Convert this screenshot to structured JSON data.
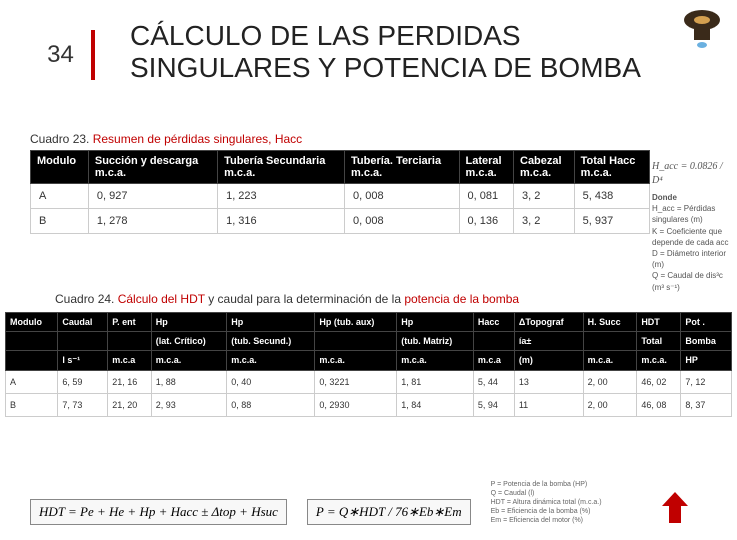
{
  "slide_number": "34",
  "title": "CÁLCULO DE LAS PERDIDAS SINGULARES Y POTENCIA DE BOMBA",
  "cuadro23": {
    "prefix": "Cuadro 23.",
    "text": "Resumen de pérdidas singulares, Hacc"
  },
  "table1": {
    "headers": [
      {
        "l1": "Modulo",
        "l2": ""
      },
      {
        "l1": "Succión y descarga",
        "l2": "m.c.a."
      },
      {
        "l1": "Tubería Secundaria",
        "l2": "m.c.a."
      },
      {
        "l1": "Tubería. Terciaria",
        "l2": "m.c.a."
      },
      {
        "l1": "Lateral",
        "l2": "m.c.a."
      },
      {
        "l1": "Cabezal",
        "l2": "m.c.a."
      },
      {
        "l1": "Total Hacc",
        "l2": "m.c.a."
      }
    ],
    "rows": [
      [
        "A",
        "0, 927",
        "1, 223",
        "0, 008",
        "0, 081",
        "3, 2",
        "5, 438"
      ],
      [
        "B",
        "1, 278",
        "1, 316",
        "0, 008",
        "0, 136",
        "3, 2",
        "5, 937"
      ]
    ]
  },
  "formula_right": {
    "eq": "H_acc = 0.0826 / D⁴",
    "donde": "Donde",
    "lines": [
      "H_acc = Pérdidas singulares (m)",
      "K = Coeficiente que depende de cada acc",
      "D = Diámetro interior (m)",
      "Q = Caudal de dis³c (m³ s⁻¹)"
    ]
  },
  "cuadro24": {
    "prefix": "Cuadro 24.",
    "red1": "Cálculo del HDT",
    "mid": " y caudal para la determinación de la ",
    "red2": "potencia de la bomba"
  },
  "table2": {
    "headers_row1": [
      "Modulo",
      "Caudal",
      "P. ent",
      "Hp",
      "Hp",
      "Hp (tub. aux)",
      "Hp",
      "Hacc",
      "ΔTopograf",
      "H. Succ",
      "HDT",
      "Pot ."
    ],
    "headers_row2": [
      "",
      "",
      "",
      "(lat. Crítico)",
      "(tub. Secund.)",
      "",
      "(tub. Matriz)",
      "",
      "ía±",
      "",
      "Total",
      "Bomba"
    ],
    "headers_row3": [
      "",
      "l s⁻¹",
      "m.c.a",
      "m.c.a.",
      "m.c.a.",
      "m.c.a.",
      "m.c.a.",
      "m.c.a",
      "(m)",
      "m.c.a.",
      "m.c.a.",
      "HP"
    ],
    "rows": [
      [
        "A",
        "6, 59",
        "21, 16",
        "1, 88",
        "0, 40",
        "0, 3221",
        "1, 81",
        "5, 44",
        "13",
        "2, 00",
        "46, 02",
        "7, 12"
      ],
      [
        "B",
        "7, 73",
        "21, 20",
        "2, 93",
        "0, 88",
        "0, 2930",
        "1, 84",
        "5, 94",
        "11",
        "2, 00",
        "46, 08",
        "8, 37"
      ]
    ]
  },
  "formulas": {
    "hdt": "HDT = Pe + He + Hp + Hacc ± Δtop + Hsuc",
    "p": "P = Q∗HDT / 76∗Eb∗Em",
    "legend": [
      "P   = Potencia de la bomba (HP)",
      "Q   = Caudal (l)",
      "HDT = Altura dinámica total (m.c.a.)",
      "Eb  = Eficiencia de la bomba (%)",
      "Em  = Eficiencia del motor (%)"
    ]
  },
  "colors": {
    "accent": "#c00000",
    "header_bg": "#000000",
    "header_fg": "#ffffff"
  }
}
